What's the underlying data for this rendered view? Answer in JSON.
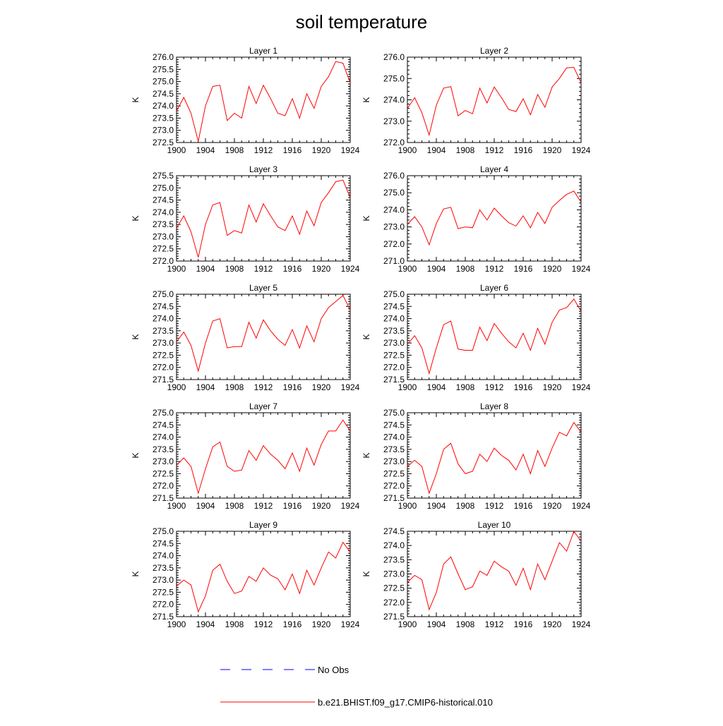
{
  "title": "soil temperature",
  "colors": {
    "model": "#ff0000",
    "obs": "#0000ff",
    "axis": "#000000"
  },
  "legend": [
    {
      "label": "No Obs",
      "style": "dashed",
      "color": "#0000ff"
    },
    {
      "label": "b.e21.BHIST.f09_g17.CMIP6-historical.010",
      "style": "solid",
      "color": "#ff0000"
    }
  ],
  "chart_data": [
    {
      "type": "line",
      "title": "Layer 1",
      "ylabel": "K",
      "xlim": [
        1900,
        1924
      ],
      "ylim": [
        272.5,
        276.0
      ],
      "xticks": [
        "1900",
        "1904",
        "1908",
        "1912",
        "1916",
        "1920",
        "1924"
      ],
      "yticks": [
        "272.5",
        "273.0",
        "273.5",
        "274.0",
        "274.5",
        "275.0",
        "275.5",
        "276.0"
      ],
      "x": [
        1900,
        1901,
        1902,
        1903,
        1904,
        1905,
        1906,
        1907,
        1908,
        1909,
        1910,
        1911,
        1912,
        1913,
        1914,
        1915,
        1916,
        1917,
        1918,
        1919,
        1920,
        1921,
        1922,
        1923,
        1924
      ],
      "series": [
        {
          "name": "b.e21.BHIST.f09_g17.CMIP6-historical.010",
          "values": [
            273.8,
            274.35,
            273.7,
            272.55,
            274.0,
            274.8,
            274.85,
            273.4,
            273.7,
            273.5,
            274.8,
            274.1,
            274.85,
            274.3,
            273.7,
            273.6,
            274.3,
            273.5,
            274.5,
            273.9,
            274.8,
            275.2,
            275.82,
            275.75,
            274.95
          ]
        }
      ]
    },
    {
      "type": "line",
      "title": "Layer 2",
      "ylabel": "K",
      "xlim": [
        1900,
        1924
      ],
      "ylim": [
        272.0,
        276.0
      ],
      "xticks": [
        "1900",
        "1904",
        "1908",
        "1912",
        "1916",
        "1920",
        "1924"
      ],
      "yticks": [
        "272.0",
        "273.0",
        "274.0",
        "275.0",
        "276.0"
      ],
      "x": [
        1900,
        1901,
        1902,
        1903,
        1904,
        1905,
        1906,
        1907,
        1908,
        1909,
        1910,
        1911,
        1912,
        1913,
        1914,
        1915,
        1916,
        1917,
        1918,
        1919,
        1920,
        1921,
        1922,
        1923,
        1924
      ],
      "series": [
        {
          "name": "b.e21.BHIST.f09_g17.CMIP6-historical.010",
          "values": [
            273.6,
            274.1,
            273.4,
            272.35,
            273.75,
            274.55,
            274.62,
            273.25,
            273.5,
            273.35,
            274.55,
            273.85,
            274.6,
            274.1,
            273.55,
            273.45,
            274.05,
            273.3,
            274.25,
            273.65,
            274.6,
            275.0,
            275.5,
            275.52,
            274.8
          ]
        }
      ]
    },
    {
      "type": "line",
      "title": "Layer 3",
      "ylabel": "K",
      "xlim": [
        1900,
        1924
      ],
      "ylim": [
        272.0,
        275.5
      ],
      "xticks": [
        "1900",
        "1904",
        "1908",
        "1912",
        "1916",
        "1920",
        "1924"
      ],
      "yticks": [
        "272.0",
        "272.5",
        "273.0",
        "273.5",
        "274.0",
        "274.5",
        "275.0",
        "275.5"
      ],
      "x": [
        1900,
        1901,
        1902,
        1903,
        1904,
        1905,
        1906,
        1907,
        1908,
        1909,
        1910,
        1911,
        1912,
        1913,
        1914,
        1915,
        1916,
        1917,
        1918,
        1919,
        1920,
        1921,
        1922,
        1923,
        1924
      ],
      "series": [
        {
          "name": "b.e21.BHIST.f09_g17.CMIP6-historical.010",
          "values": [
            273.35,
            273.85,
            273.2,
            272.15,
            273.5,
            274.3,
            274.4,
            273.05,
            273.25,
            273.15,
            274.3,
            273.6,
            274.35,
            273.85,
            273.4,
            273.25,
            273.85,
            273.1,
            274.05,
            273.45,
            274.4,
            274.8,
            275.25,
            275.32,
            274.6
          ]
        }
      ]
    },
    {
      "type": "line",
      "title": "Layer 4",
      "ylabel": "K",
      "xlim": [
        1900,
        1924
      ],
      "ylim": [
        271.0,
        276.0
      ],
      "xticks": [
        "1900",
        "1904",
        "1908",
        "1912",
        "1916",
        "1920",
        "1924"
      ],
      "yticks": [
        "271.0",
        "272.0",
        "273.0",
        "274.0",
        "275.0",
        "276.0"
      ],
      "x": [
        1900,
        1901,
        1902,
        1903,
        1904,
        1905,
        1906,
        1907,
        1908,
        1909,
        1910,
        1911,
        1912,
        1913,
        1914,
        1915,
        1916,
        1917,
        1918,
        1919,
        1920,
        1921,
        1922,
        1923,
        1924
      ],
      "series": [
        {
          "name": "b.e21.BHIST.f09_g17.CMIP6-historical.010",
          "values": [
            273.15,
            273.6,
            273.0,
            271.95,
            273.2,
            274.05,
            274.15,
            272.9,
            273.0,
            272.95,
            274.0,
            273.4,
            274.1,
            273.65,
            273.25,
            273.05,
            273.65,
            272.95,
            273.85,
            273.2,
            274.15,
            274.55,
            274.9,
            275.1,
            274.45
          ]
        }
      ]
    },
    {
      "type": "line",
      "title": "Layer 5",
      "ylabel": "K",
      "xlim": [
        1900,
        1924
      ],
      "ylim": [
        271.5,
        275.0
      ],
      "xticks": [
        "1900",
        "1904",
        "1908",
        "1912",
        "1916",
        "1920",
        "1924"
      ],
      "yticks": [
        "271.5",
        "272.0",
        "272.5",
        "273.0",
        "273.5",
        "274.0",
        "274.5",
        "275.0"
      ],
      "x": [
        1900,
        1901,
        1902,
        1903,
        1904,
        1905,
        1906,
        1907,
        1908,
        1909,
        1910,
        1911,
        1912,
        1913,
        1914,
        1915,
        1916,
        1917,
        1918,
        1919,
        1920,
        1921,
        1922,
        1923,
        1924
      ],
      "series": [
        {
          "name": "b.e21.BHIST.f09_g17.CMIP6-historical.010",
          "values": [
            273.05,
            273.45,
            272.9,
            271.85,
            273.0,
            273.9,
            274.0,
            272.8,
            272.85,
            272.85,
            273.85,
            273.2,
            273.95,
            273.5,
            273.15,
            272.9,
            273.55,
            272.8,
            273.7,
            273.05,
            274.0,
            274.45,
            274.7,
            274.95,
            274.35
          ]
        }
      ]
    },
    {
      "type": "line",
      "title": "Layer 6",
      "ylabel": "K",
      "xlim": [
        1900,
        1924
      ],
      "ylim": [
        271.5,
        275.0
      ],
      "xticks": [
        "1900",
        "1904",
        "1908",
        "1912",
        "1916",
        "1920",
        "1924"
      ],
      "yticks": [
        "271.5",
        "272.0",
        "272.5",
        "273.0",
        "273.5",
        "274.0",
        "274.5",
        "275.0"
      ],
      "x": [
        1900,
        1901,
        1902,
        1903,
        1904,
        1905,
        1906,
        1907,
        1908,
        1909,
        1910,
        1911,
        1912,
        1913,
        1914,
        1915,
        1916,
        1917,
        1918,
        1919,
        1920,
        1921,
        1922,
        1923,
        1924
      ],
      "series": [
        {
          "name": "b.e21.BHIST.f09_g17.CMIP6-historical.010",
          "values": [
            272.95,
            273.3,
            272.8,
            271.75,
            272.8,
            273.75,
            273.9,
            272.75,
            272.7,
            272.7,
            273.65,
            273.1,
            273.8,
            273.4,
            273.05,
            272.8,
            273.4,
            272.7,
            273.6,
            272.95,
            273.85,
            274.35,
            274.45,
            274.8,
            274.3
          ]
        }
      ]
    },
    {
      "type": "line",
      "title": "Layer 7",
      "ylabel": "K",
      "xlim": [
        1900,
        1924
      ],
      "ylim": [
        271.5,
        275.0
      ],
      "xticks": [
        "1900",
        "1904",
        "1908",
        "1912",
        "1916",
        "1920",
        "1924"
      ],
      "yticks": [
        "271.5",
        "272.0",
        "272.5",
        "273.0",
        "273.5",
        "274.0",
        "274.5",
        "275.0"
      ],
      "x": [
        1900,
        1901,
        1902,
        1903,
        1904,
        1905,
        1906,
        1907,
        1908,
        1909,
        1910,
        1911,
        1912,
        1913,
        1914,
        1915,
        1916,
        1917,
        1918,
        1919,
        1920,
        1921,
        1922,
        1923,
        1924
      ],
      "series": [
        {
          "name": "b.e21.BHIST.f09_g17.CMIP6-historical.010",
          "values": [
            272.85,
            273.15,
            272.8,
            271.7,
            272.7,
            273.6,
            273.8,
            272.8,
            272.6,
            272.65,
            273.45,
            273.05,
            273.65,
            273.3,
            273.05,
            272.7,
            273.35,
            272.6,
            273.55,
            272.85,
            273.7,
            274.25,
            274.25,
            274.7,
            274.25
          ]
        }
      ]
    },
    {
      "type": "line",
      "title": "Layer 8",
      "ylabel": "K",
      "xlim": [
        1900,
        1924
      ],
      "ylim": [
        271.5,
        275.0
      ],
      "xticks": [
        "1900",
        "1904",
        "1908",
        "1912",
        "1916",
        "1920",
        "1924"
      ],
      "yticks": [
        "271.5",
        "272.0",
        "272.5",
        "273.0",
        "273.5",
        "274.0",
        "274.5",
        "275.0"
      ],
      "x": [
        1900,
        1901,
        1902,
        1903,
        1904,
        1905,
        1906,
        1907,
        1908,
        1909,
        1910,
        1911,
        1912,
        1913,
        1914,
        1915,
        1916,
        1917,
        1918,
        1919,
        1920,
        1921,
        1922,
        1923,
        1924
      ],
      "series": [
        {
          "name": "b.e21.BHIST.f09_g17.CMIP6-historical.010",
          "values": [
            272.8,
            273.05,
            272.8,
            271.7,
            272.5,
            273.5,
            273.75,
            272.9,
            272.5,
            272.6,
            273.3,
            273.0,
            273.55,
            273.25,
            273.05,
            272.65,
            273.3,
            272.5,
            273.45,
            272.8,
            273.55,
            274.2,
            274.05,
            274.6,
            274.2
          ]
        }
      ]
    },
    {
      "type": "line",
      "title": "Layer 9",
      "ylabel": "K",
      "xlim": [
        1900,
        1924
      ],
      "ylim": [
        271.5,
        275.0
      ],
      "xticks": [
        "1900",
        "1904",
        "1908",
        "1912",
        "1916",
        "1920",
        "1924"
      ],
      "yticks": [
        "271.5",
        "272.0",
        "272.5",
        "273.0",
        "273.5",
        "274.0",
        "274.5",
        "275.0"
      ],
      "x": [
        1900,
        1901,
        1902,
        1903,
        1904,
        1905,
        1906,
        1907,
        1908,
        1909,
        1910,
        1911,
        1912,
        1913,
        1914,
        1915,
        1916,
        1917,
        1918,
        1919,
        1920,
        1921,
        1922,
        1923,
        1924
      ],
      "series": [
        {
          "name": "b.e21.BHIST.f09_g17.CMIP6-historical.010",
          "values": [
            272.75,
            273.0,
            272.8,
            271.7,
            272.35,
            273.4,
            273.65,
            272.95,
            272.45,
            272.55,
            273.15,
            272.95,
            273.5,
            273.2,
            273.05,
            272.6,
            273.25,
            272.45,
            273.4,
            272.8,
            273.5,
            274.15,
            273.9,
            274.55,
            274.15
          ]
        }
      ]
    },
    {
      "type": "line",
      "title": "Layer 10",
      "ylabel": "K",
      "xlim": [
        1900,
        1924
      ],
      "ylim": [
        271.5,
        274.5
      ],
      "xticks": [
        "1900",
        "1904",
        "1908",
        "1912",
        "1916",
        "1920",
        "1924"
      ],
      "yticks": [
        "271.5",
        "272.0",
        "272.5",
        "273.0",
        "273.5",
        "274.0",
        "274.5"
      ],
      "x": [
        1900,
        1901,
        1902,
        1903,
        1904,
        1905,
        1906,
        1907,
        1908,
        1909,
        1910,
        1911,
        1912,
        1913,
        1914,
        1915,
        1916,
        1917,
        1918,
        1919,
        1920,
        1921,
        1922,
        1923,
        1924
      ],
      "series": [
        {
          "name": "b.e21.BHIST.f09_g17.CMIP6-historical.010",
          "values": [
            272.7,
            272.95,
            272.8,
            271.75,
            272.35,
            273.35,
            273.6,
            273.0,
            272.45,
            272.55,
            273.1,
            272.95,
            273.45,
            273.25,
            273.1,
            272.6,
            273.2,
            272.45,
            273.35,
            272.8,
            273.45,
            274.1,
            273.8,
            274.5,
            274.15
          ]
        }
      ]
    }
  ]
}
